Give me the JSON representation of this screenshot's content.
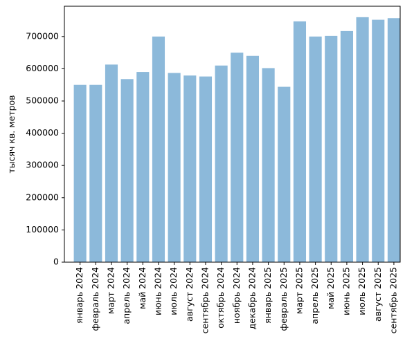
{
  "chart_data": {
    "type": "bar",
    "title": "",
    "xlabel": "",
    "ylabel": "тысяч кв. метров",
    "categories": [
      "январь 2024",
      "февраль 2024",
      "март 2024",
      "апрель 2024",
      "май 2024",
      "июнь 2024",
      "июль 2024",
      "август 2024",
      "сентябрь 2024",
      "октябрь 2024",
      "ноябрь 2024",
      "декабрь 2024",
      "январь 2025",
      "февраль 2025",
      "март 2025",
      "апрель 2025",
      "май 2025",
      "июнь 2025",
      "июль 2025",
      "август 2025",
      "сентябрь 2025"
    ],
    "values": [
      550000,
      550000,
      613000,
      568000,
      590000,
      700000,
      587000,
      579000,
      576000,
      610000,
      650000,
      640000,
      602000,
      544000,
      747000,
      700000,
      702000,
      717000,
      760000,
      752000,
      757000
    ],
    "ylim": [
      0,
      794000
    ],
    "yticks": [
      0,
      100000,
      200000,
      300000,
      400000,
      500000,
      600000,
      700000
    ],
    "bar_color": "#8cb9da",
    "grid": false,
    "legend": "none"
  }
}
